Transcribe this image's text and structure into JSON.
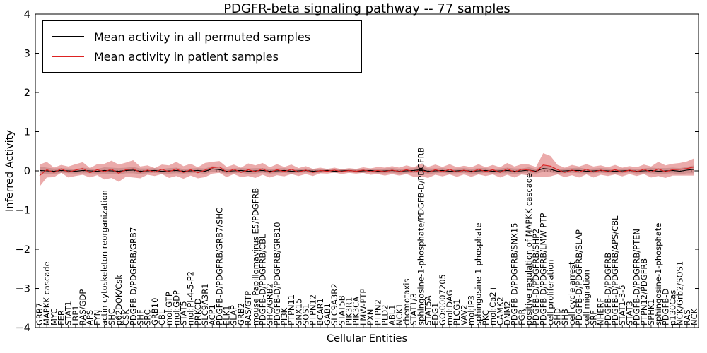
{
  "figure_name": "PDGFR-beta signaling pathway activity plot",
  "chart_data": {
    "type": "line",
    "title": "PDGFR-beta signaling pathway -- 77 samples",
    "xlabel": "Cellular Entities",
    "ylabel": "Inferred Activity",
    "ylim": [
      -4,
      4
    ],
    "grid": false,
    "legend_position": "upper left",
    "ytick_values": [
      4,
      3,
      2,
      1,
      0,
      -1,
      -2,
      -3,
      -4
    ],
    "ytick_labels": [
      "4",
      "3",
      "2",
      "1",
      "0",
      "−1",
      "−2",
      "−3",
      "−4"
    ],
    "legend": [
      {
        "label": "Mean activity in all permuted samples",
        "color": "#000000"
      },
      {
        "label": "Mean activity in patient samples",
        "color": "#dd2222"
      }
    ],
    "colors": {
      "patient_line": "#dd2222",
      "permuted_line": "#000000",
      "patient_band": "rgba(205,45,45,0.40)",
      "permuted_band": "rgba(128,128,128,0.35)",
      "zero_line": "#000000"
    },
    "x_labels": [
      "GRB7",
      "MAPKK cascade",
      "MYC",
      "FER",
      "STAT1",
      "LRP1",
      "RAS/GDP",
      "APS",
      "FYN",
      "actin cytoskeleton reorganization",
      "SHC",
      "p62DOK/Csk",
      "CSK",
      "PDGFB-D/PDGFRB/GRB7",
      "SHF",
      "SRC",
      "GRB10",
      "CBL",
      "mol:GTP",
      "mol:GDP",
      "STAT5",
      "mol:PI-4-5-P2",
      "PRKCD",
      "SLC9A3R1",
      "ACP1",
      "PDGFB-D/PDGFRB/GRB7/SHC",
      "ELK1",
      "SLAP",
      "GRB2",
      "RAS/GTP",
      "mouse Papillomavirus E5/PDGFRB",
      "PDGFB-D/PDGFRB/CBL",
      "SHC/GRB2",
      "PDGFB-D/PDGFRB/GRB10",
      "PI3K",
      "PTPN11",
      "SNX15",
      "SOS1",
      "PTPN12",
      "BCAR1",
      "GAB1",
      "SLC9A3R2",
      "STAT5B",
      "PIK3R1",
      "PIK3CA",
      "LMW-PTP",
      "PXN",
      "PTPN2",
      "PLD2",
      "ABL1",
      "NCK1",
      "chemotaxis",
      "STAT1/3",
      "sphingosine-1-phosphate/PDGFB-D/PDGFRB",
      "STAT5A",
      "EDG1",
      "GO:0007205",
      "mol:DAG",
      "PLCG1",
      "VAV2",
      "mol:IP3",
      "sphingosine-1-phosphate",
      "PKC",
      "mol:Ca2+",
      "CAMK2",
      "DNM2",
      "PDGFB-D/PDGFRB/SNX15",
      "FGR",
      "positive regulation of MAPKK cascade",
      "PDGFB-D/PDGFRB/SHP2",
      "PDGFB-D/PDGFRB/LMW-PTP",
      "cell proliferation",
      "SHD",
      "SHB",
      "cell cycle arrest",
      "PDGFB-D/PDGFRB/SLAP",
      "cell migration",
      "SRF",
      "NHERF",
      "PDGFB-D/PDGFRB",
      "PDGFB-D/PDGFRB/APS/CBL",
      "STAT1-3-5",
      "STAT3",
      "PDGFB-D/PDGFRB/PTEN",
      "PTPN12/PDGFRB",
      "SPHK1",
      "sphingosine-1-phosphate",
      "PDGFB-D",
      "p130Cas",
      "NCK/Grb2/SOS1",
      "RAS",
      "NCK"
    ],
    "series": [
      {
        "name": "Mean activity in all permuted samples",
        "color": "#000000",
        "band_color": "rgba(128,128,128,0.35)",
        "values": [
          0.01,
          0,
          -0.01,
          0.01,
          0,
          -0.01,
          0.01,
          0,
          -0.01,
          0.01,
          0,
          -0.01,
          0.01,
          0.02,
          -0.01,
          0,
          0.01,
          -0.01,
          0,
          0.01,
          -0.01,
          0,
          0.01,
          -0.01,
          0.05,
          0.03,
          -0.01,
          0,
          0.01,
          -0.01,
          0,
          0.01,
          -0.01,
          0,
          0.01,
          -0.01,
          0,
          0.01,
          -0.01,
          0,
          0.01,
          -0.01,
          0,
          0.01,
          -0.01,
          0,
          0.01,
          -0.01,
          0,
          0.01,
          -0.01,
          0,
          0.01,
          0.03,
          -0.01,
          0,
          0.01,
          -0.01,
          0,
          0.01,
          -0.01,
          0,
          0.01,
          -0.01,
          0,
          0.01,
          -0.01,
          0,
          0.02,
          -0.01,
          0.06,
          0.04,
          -0.01,
          0,
          0.01,
          0.01,
          -0.01,
          0,
          0.01,
          0,
          -0.01,
          0,
          0.01,
          -0.01,
          0,
          0.01,
          -0.01,
          0,
          0.01,
          -0.01,
          0.02,
          0.04
        ],
        "band_halfwidth": [
          0.1,
          0.08,
          0.07,
          0.06,
          0.06,
          0.06,
          0.07,
          0.06,
          0.06,
          0.08,
          0.08,
          0.08,
          0.07,
          0.08,
          0.07,
          0.06,
          0.06,
          0.06,
          0.07,
          0.07,
          0.06,
          0.06,
          0.06,
          0.07,
          0.07,
          0.07,
          0.06,
          0.06,
          0.06,
          0.07,
          0.07,
          0.06,
          0.06,
          0.06,
          0.06,
          0.06,
          0.05,
          0.05,
          0.05,
          0.05,
          0.04,
          0.04,
          0.04,
          0.04,
          0.04,
          0.05,
          0.05,
          0.05,
          0.06,
          0.06,
          0.06,
          0.06,
          0.06,
          0.08,
          0.07,
          0.06,
          0.06,
          0.06,
          0.06,
          0.06,
          0.06,
          0.07,
          0.06,
          0.06,
          0.06,
          0.07,
          0.07,
          0.06,
          0.07,
          0.06,
          0.09,
          0.08,
          0.06,
          0.06,
          0.06,
          0.07,
          0.06,
          0.06,
          0.06,
          0.06,
          0.06,
          0.06,
          0.05,
          0.06,
          0.06,
          0.07,
          0.08,
          0.07,
          0.07,
          0.08,
          0.08,
          0.1
        ]
      },
      {
        "name": "Mean activity in patient samples",
        "color": "#dd2222",
        "band_color": "rgba(205,45,45,0.40)",
        "values": [
          -0.12,
          0.03,
          -0.04,
          0.05,
          -0.03,
          0.02,
          0.06,
          -0.05,
          0.03,
          -0.02,
          0.04,
          -0.06,
          0.03,
          0.05,
          -0.04,
          0.02,
          -0.03,
          0.04,
          -0.02,
          0.05,
          -0.04,
          0.03,
          -0.05,
          0.02,
          0.08,
          0.1,
          -0.03,
          0.04,
          -0.04,
          0.03,
          -0.02,
          0.05,
          -0.04,
          0.03,
          -0.02,
          0.04,
          -0.03,
          0.02,
          -0.04,
          0.01,
          -0.01,
          0.02,
          -0.02,
          0.01,
          -0.01,
          0.02,
          -0.02,
          0.01,
          -0.02,
          0.02,
          -0.02,
          0.03,
          -0.03,
          0.02,
          -0.04,
          0.03,
          -0.02,
          0.04,
          -0.03,
          0.02,
          -0.03,
          0.04,
          -0.02,
          0.03,
          -0.04,
          0.05,
          -0.03,
          0.04,
          0.02,
          -0.03,
          0.15,
          0.12,
          0.03,
          -0.04,
          0.02,
          -0.03,
          0.04,
          -0.03,
          0.02,
          -0.02,
          0.03,
          -0.03,
          0.02,
          -0.02,
          0.04,
          -0.03,
          0.05,
          -0.02,
          0.03,
          0.04,
          0.06,
          0.1
        ],
        "band_halfwidth": [
          0.28,
          0.2,
          0.12,
          0.1,
          0.14,
          0.15,
          0.16,
          0.12,
          0.14,
          0.2,
          0.22,
          0.22,
          0.18,
          0.22,
          0.15,
          0.12,
          0.1,
          0.12,
          0.16,
          0.18,
          0.16,
          0.15,
          0.14,
          0.18,
          0.15,
          0.15,
          0.13,
          0.12,
          0.12,
          0.16,
          0.16,
          0.15,
          0.13,
          0.14,
          0.12,
          0.12,
          0.1,
          0.1,
          0.09,
          0.07,
          0.06,
          0.06,
          0.06,
          0.06,
          0.06,
          0.07,
          0.08,
          0.09,
          0.1,
          0.1,
          0.1,
          0.11,
          0.12,
          0.16,
          0.14,
          0.13,
          0.12,
          0.13,
          0.12,
          0.11,
          0.12,
          0.13,
          0.11,
          0.12,
          0.13,
          0.15,
          0.14,
          0.13,
          0.14,
          0.13,
          0.3,
          0.26,
          0.12,
          0.12,
          0.13,
          0.14,
          0.13,
          0.14,
          0.12,
          0.11,
          0.12,
          0.11,
          0.1,
          0.11,
          0.12,
          0.14,
          0.18,
          0.16,
          0.15,
          0.16,
          0.18,
          0.22
        ]
      }
    ]
  }
}
